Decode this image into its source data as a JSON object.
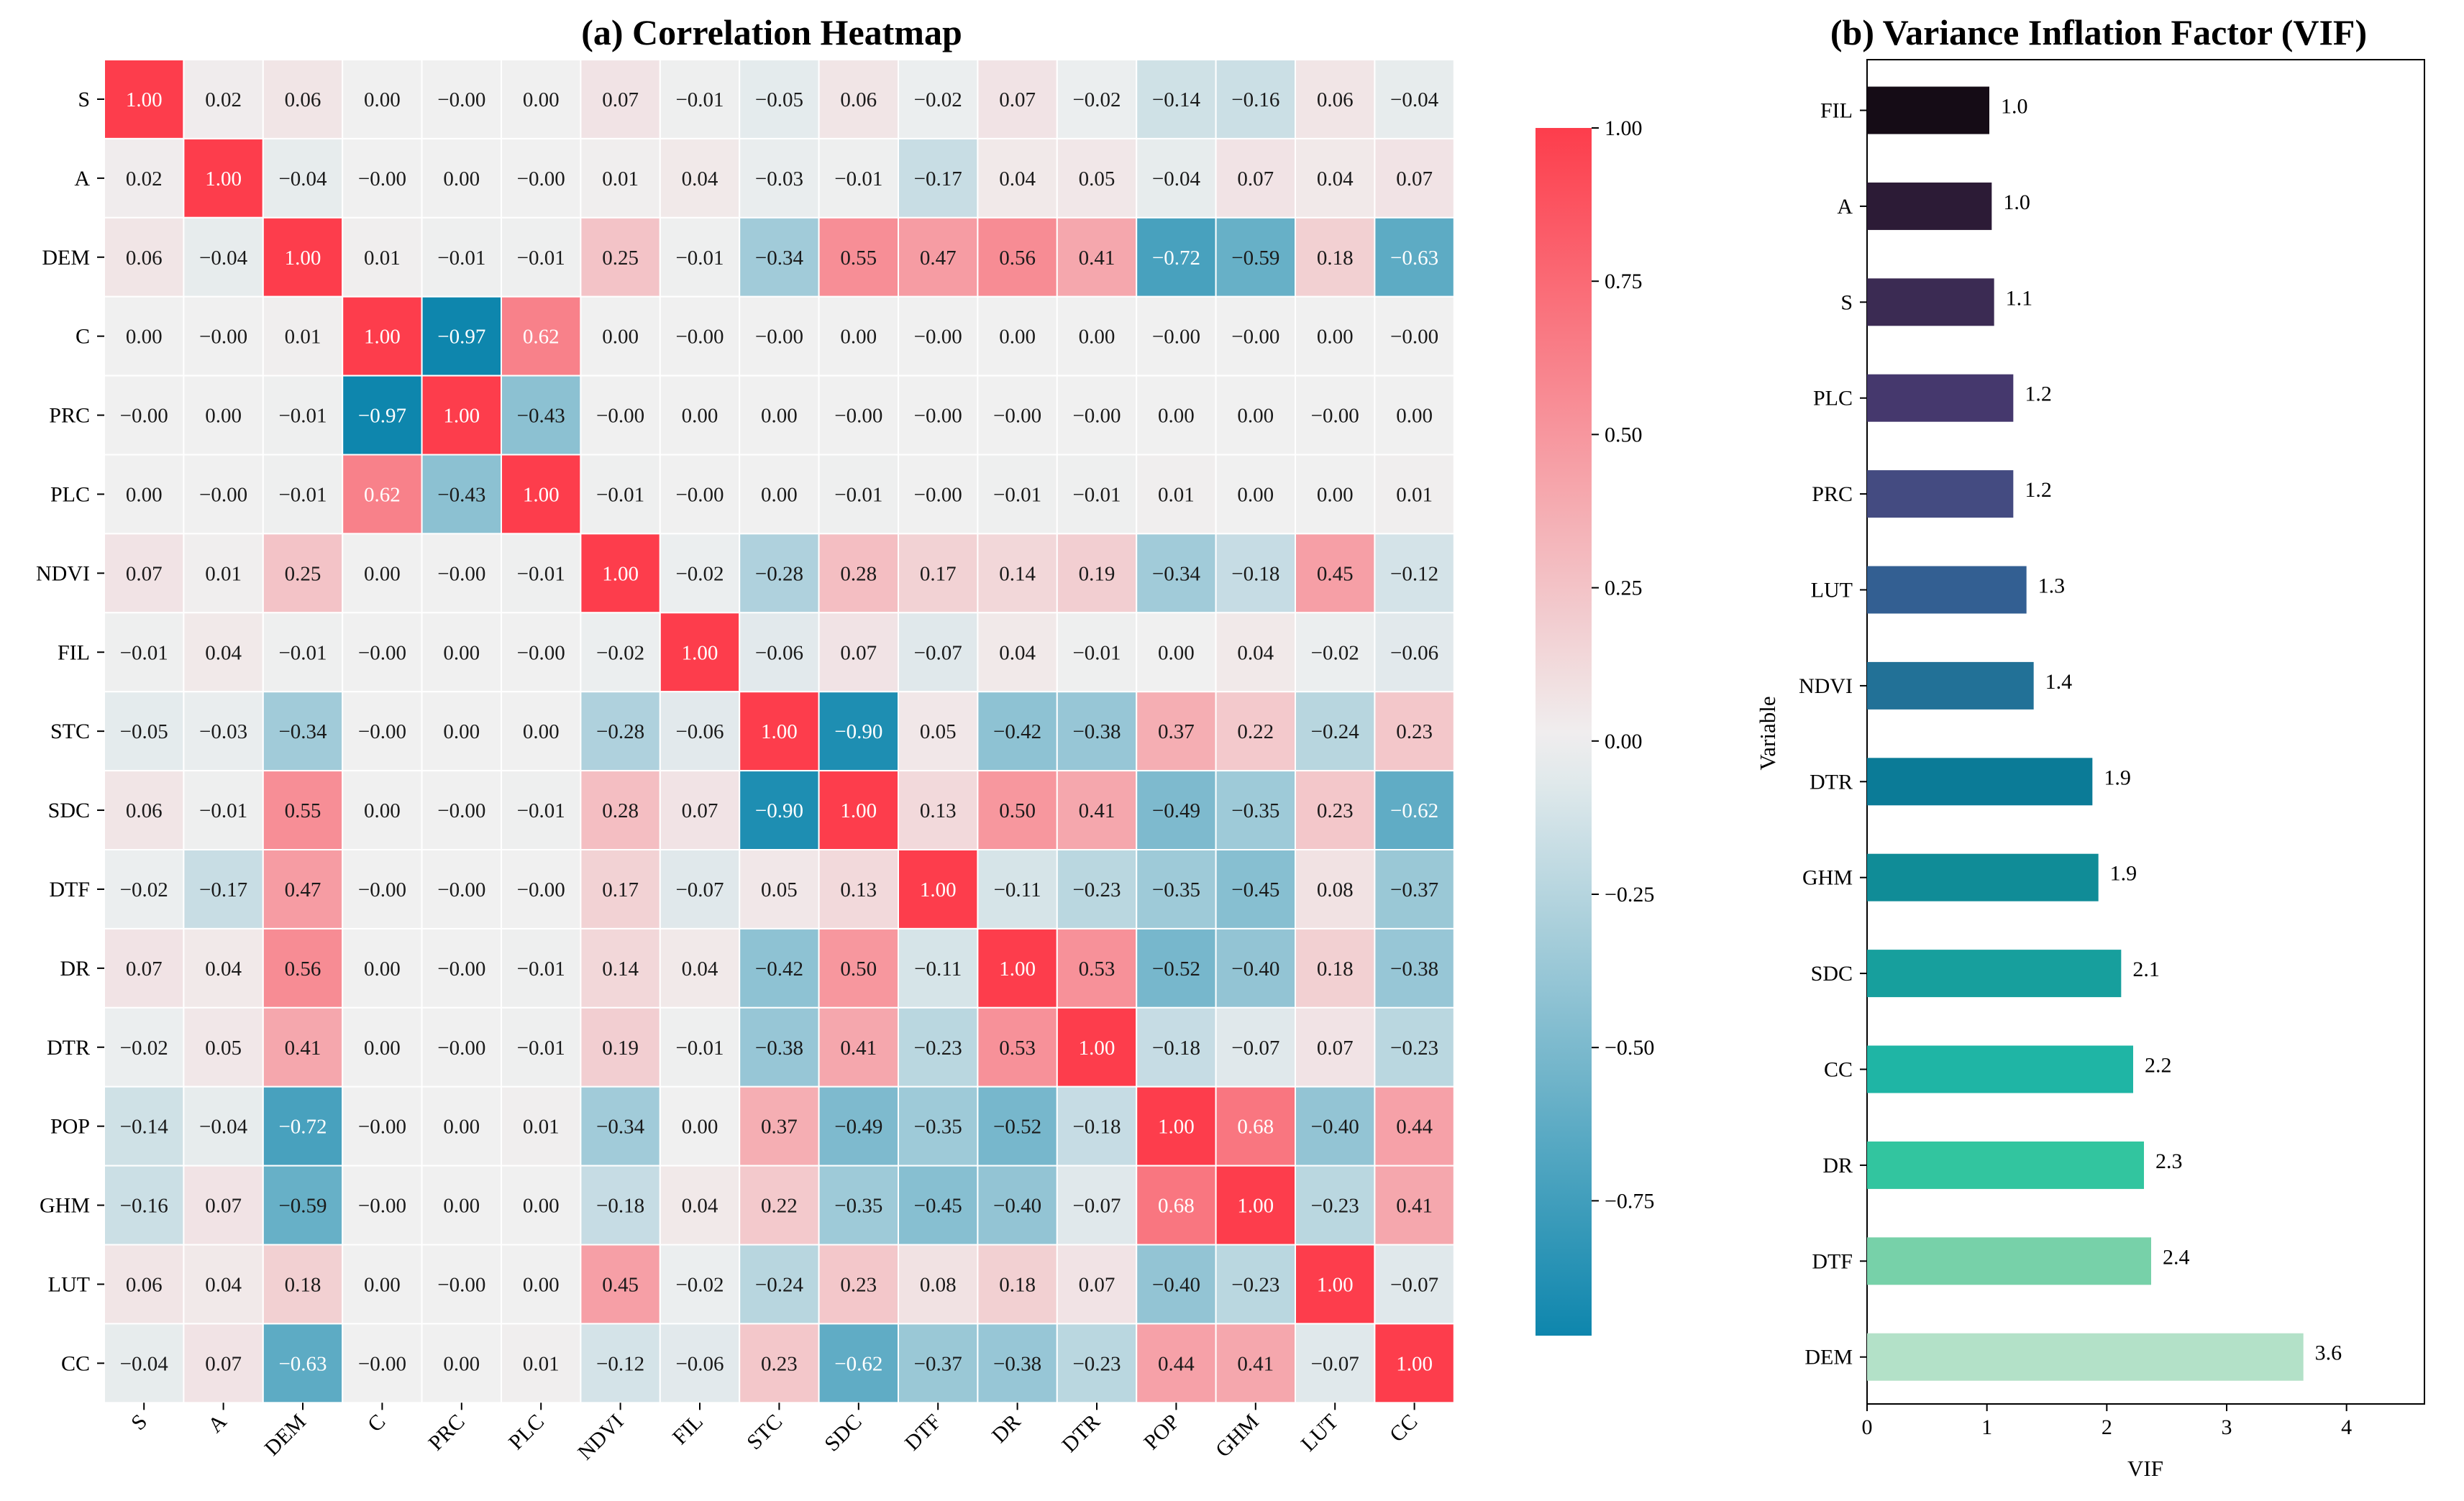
{
  "chart_data": [
    {
      "type": "heatmap",
      "title": "(a) Correlation Heatmap",
      "variables": [
        "S",
        "A",
        "DEM",
        "C",
        "PRC",
        "PLC",
        "NDVI",
        "FIL",
        "STC",
        "SDC",
        "DTF",
        "DR",
        "DTR",
        "POP",
        "GHM",
        "LUT",
        "CC"
      ],
      "matrix": [
        [
          "1.00",
          "0.02",
          "0.06",
          "0.00",
          "-0.00",
          "0.00",
          "0.07",
          "-0.01",
          "-0.05",
          "0.06",
          "-0.02",
          "0.07",
          "-0.02",
          "-0.14",
          "-0.16",
          "0.06",
          "-0.04"
        ],
        [
          "0.02",
          "1.00",
          "-0.04",
          "-0.00",
          "0.00",
          "-0.00",
          "0.01",
          "0.04",
          "-0.03",
          "-0.01",
          "-0.17",
          "0.04",
          "0.05",
          "-0.04",
          "0.07",
          "0.04",
          "0.07"
        ],
        [
          "0.06",
          "-0.04",
          "1.00",
          "0.01",
          "-0.01",
          "-0.01",
          "0.25",
          "-0.01",
          "-0.34",
          "0.55",
          "0.47",
          "0.56",
          "0.41",
          "-0.72",
          "-0.59",
          "0.18",
          "-0.63"
        ],
        [
          "0.00",
          "-0.00",
          "0.01",
          "1.00",
          "-0.97",
          "0.62",
          "0.00",
          "-0.00",
          "-0.00",
          "0.00",
          "-0.00",
          "0.00",
          "0.00",
          "-0.00",
          "-0.00",
          "0.00",
          "-0.00"
        ],
        [
          "-0.00",
          "0.00",
          "-0.01",
          "-0.97",
          "1.00",
          "-0.43",
          "-0.00",
          "0.00",
          "0.00",
          "-0.00",
          "-0.00",
          "-0.00",
          "-0.00",
          "0.00",
          "0.00",
          "-0.00",
          "0.00"
        ],
        [
          "0.00",
          "-0.00",
          "-0.01",
          "0.62",
          "-0.43",
          "1.00",
          "-0.01",
          "-0.00",
          "0.00",
          "-0.01",
          "-0.00",
          "-0.01",
          "-0.01",
          "0.01",
          "0.00",
          "0.00",
          "0.01"
        ],
        [
          "0.07",
          "0.01",
          "0.25",
          "0.00",
          "-0.00",
          "-0.01",
          "1.00",
          "-0.02",
          "-0.28",
          "0.28",
          "0.17",
          "0.14",
          "0.19",
          "-0.34",
          "-0.18",
          "0.45",
          "-0.12"
        ],
        [
          "-0.01",
          "0.04",
          "-0.01",
          "-0.00",
          "0.00",
          "-0.00",
          "-0.02",
          "1.00",
          "-0.06",
          "0.07",
          "-0.07",
          "0.04",
          "-0.01",
          "0.00",
          "0.04",
          "-0.02",
          "-0.06"
        ],
        [
          "-0.05",
          "-0.03",
          "-0.34",
          "-0.00",
          "0.00",
          "0.00",
          "-0.28",
          "-0.06",
          "1.00",
          "-0.90",
          "0.05",
          "-0.42",
          "-0.38",
          "0.37",
          "0.22",
          "-0.24",
          "0.23"
        ],
        [
          "0.06",
          "-0.01",
          "0.55",
          "0.00",
          "-0.00",
          "-0.01",
          "0.28",
          "0.07",
          "-0.90",
          "1.00",
          "0.13",
          "0.50",
          "0.41",
          "-0.49",
          "-0.35",
          "0.23",
          "-0.62"
        ],
        [
          "-0.02",
          "-0.17",
          "0.47",
          "-0.00",
          "-0.00",
          "-0.00",
          "0.17",
          "-0.07",
          "0.05",
          "0.13",
          "1.00",
          "-0.11",
          "-0.23",
          "-0.35",
          "-0.45",
          "0.08",
          "-0.37"
        ],
        [
          "0.07",
          "0.04",
          "0.56",
          "0.00",
          "-0.00",
          "-0.01",
          "0.14",
          "0.04",
          "-0.42",
          "0.50",
          "-0.11",
          "1.00",
          "0.53",
          "-0.52",
          "-0.40",
          "0.18",
          "-0.38"
        ],
        [
          "-0.02",
          "0.05",
          "0.41",
          "0.00",
          "-0.00",
          "-0.01",
          "0.19",
          "-0.01",
          "-0.38",
          "0.41",
          "-0.23",
          "0.53",
          "1.00",
          "-0.18",
          "-0.07",
          "0.07",
          "-0.23"
        ],
        [
          "-0.14",
          "-0.04",
          "-0.72",
          "-0.00",
          "0.00",
          "0.01",
          "-0.34",
          "0.00",
          "0.37",
          "-0.49",
          "-0.35",
          "-0.52",
          "-0.18",
          "1.00",
          "0.68",
          "-0.40",
          "0.44"
        ],
        [
          "-0.16",
          "0.07",
          "-0.59",
          "-0.00",
          "0.00",
          "0.00",
          "-0.18",
          "0.04",
          "0.22",
          "-0.35",
          "-0.45",
          "-0.40",
          "-0.07",
          "0.68",
          "1.00",
          "-0.23",
          "0.41"
        ],
        [
          "0.06",
          "0.04",
          "0.18",
          "0.00",
          "-0.00",
          "0.00",
          "0.45",
          "-0.02",
          "-0.24",
          "0.23",
          "0.08",
          "0.18",
          "0.07",
          "-0.40",
          "-0.23",
          "1.00",
          "-0.07"
        ],
        [
          "-0.04",
          "0.07",
          "-0.63",
          "-0.00",
          "0.00",
          "0.01",
          "-0.12",
          "-0.06",
          "0.23",
          "-0.62",
          "-0.37",
          "-0.38",
          "-0.23",
          "0.44",
          "0.41",
          "-0.07",
          "1.00"
        ]
      ],
      "colorbar": {
        "range": [
          -0.97,
          1.0
        ],
        "ticks": [
          1.0,
          0.75,
          0.5,
          0.25,
          0.0,
          -0.25,
          -0.5,
          -0.75
        ],
        "tick_labels": [
          "1.00",
          "0.75",
          "0.50",
          "0.25",
          "0.00",
          "−0.25",
          "−0.50",
          "−0.75"
        ]
      },
      "colors": {
        "negative": "#0e86ad",
        "neutral": "#f0f0f0",
        "positive": "#fd3d4c"
      }
    },
    {
      "type": "bar",
      "orientation": "horizontal",
      "title": "(b) Variance Inflation Factor (VIF)",
      "xlabel": "VIF",
      "ylabel": "Variable",
      "xlim": [
        0,
        4.65
      ],
      "xticks": [
        "0",
        "1",
        "2",
        "3",
        "4"
      ],
      "categories": [
        "FIL",
        "A",
        "S",
        "PLC",
        "PRC",
        "LUT",
        "NDVI",
        "DTR",
        "GHM",
        "SDC",
        "CC",
        "DR",
        "DTF",
        "DEM"
      ],
      "values": [
        1.02,
        1.04,
        1.06,
        1.22,
        1.22,
        1.33,
        1.39,
        1.88,
        1.93,
        2.12,
        2.22,
        2.31,
        2.37,
        3.64
      ],
      "value_labels": [
        "1.0",
        "1.0",
        "1.1",
        "1.2",
        "1.2",
        "1.3",
        "1.4",
        "1.9",
        "1.9",
        "2.1",
        "2.2",
        "2.3",
        "2.4",
        "3.6"
      ],
      "bar_colors": [
        "#150c16",
        "#2c1b36",
        "#3b2b53",
        "#45386d",
        "#444b81",
        "#335f92",
        "#227197",
        "#0b7b97",
        "#108c97",
        "#179f9d",
        "#1fb5a5",
        "#32c59f",
        "#77d1a9",
        "#b3e1c8"
      ]
    }
  ]
}
